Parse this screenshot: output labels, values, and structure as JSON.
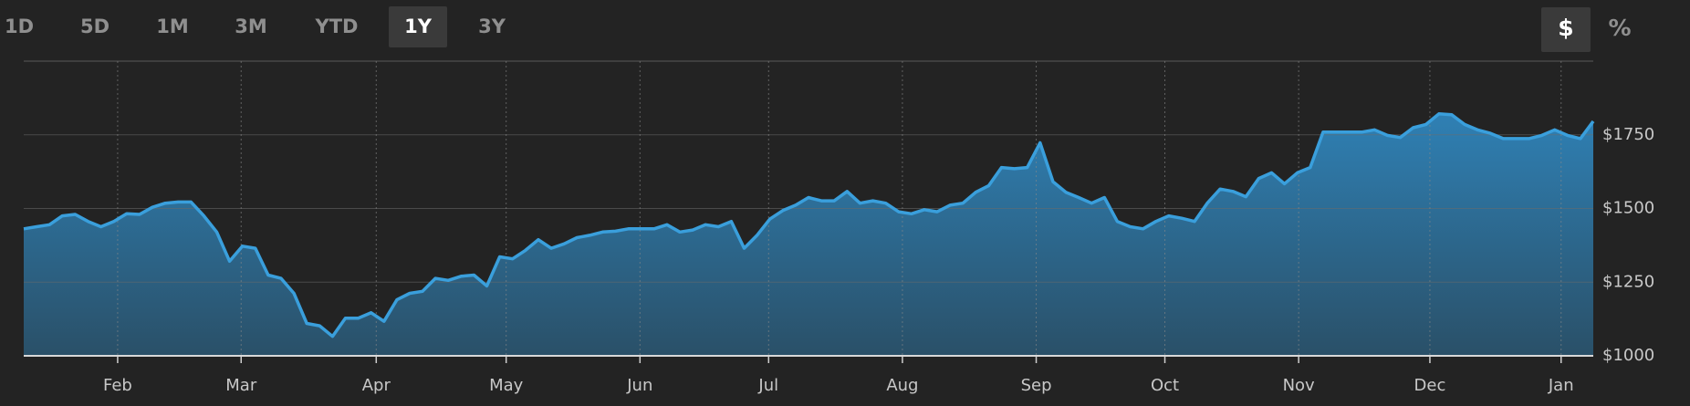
{
  "controls": {
    "ranges": [
      {
        "label": "1D",
        "active": false
      },
      {
        "label": "5D",
        "active": false
      },
      {
        "label": "1M",
        "active": false
      },
      {
        "label": "3M",
        "active": false
      },
      {
        "label": "YTD",
        "active": false
      },
      {
        "label": "1Y",
        "active": true
      },
      {
        "label": "3Y",
        "active": false
      }
    ],
    "units": [
      {
        "label": "$",
        "active": true
      },
      {
        "label": "%",
        "active": false
      }
    ]
  },
  "chart_data": {
    "type": "area",
    "color": "#3a9fdc",
    "values": [
      1431,
      1438,
      1445,
      1475,
      1480,
      1456,
      1438,
      1456,
      1482,
      1480,
      1504,
      1518,
      1522,
      1522,
      1475,
      1420,
      1321,
      1372,
      1365,
      1274,
      1263,
      1212,
      1110,
      1102,
      1066,
      1128,
      1128,
      1146,
      1117,
      1190,
      1212,
      1219,
      1263,
      1256,
      1270,
      1274,
      1237,
      1336,
      1329,
      1358,
      1394,
      1365,
      1380,
      1401,
      1409,
      1420,
      1423,
      1431,
      1431,
      1431,
      1445,
      1420,
      1427,
      1445,
      1438,
      1456,
      1365,
      1409,
      1464,
      1493,
      1511,
      1537,
      1526,
      1526,
      1558,
      1518,
      1526,
      1518,
      1489,
      1482,
      1496,
      1489,
      1511,
      1518,
      1555,
      1577,
      1639,
      1635,
      1639,
      1723,
      1591,
      1555,
      1537,
      1518,
      1537,
      1456,
      1438,
      1431,
      1456,
      1475,
      1467,
      1456,
      1518,
      1566,
      1558,
      1540,
      1602,
      1621,
      1584,
      1621,
      1639,
      1759,
      1759,
      1759,
      1759,
      1767,
      1748,
      1741,
      1774,
      1785,
      1821,
      1818,
      1785,
      1767,
      1755,
      1737,
      1737,
      1737,
      1748,
      1767,
      1748,
      1737,
      1796
    ],
    "xlim": [
      0,
      122
    ],
    "xticks": [
      {
        "value": 7.3,
        "label": "Feb"
      },
      {
        "value": 16.9,
        "label": "Mar"
      },
      {
        "value": 27.4,
        "label": "Apr"
      },
      {
        "value": 37.5,
        "label": "May"
      },
      {
        "value": 47.9,
        "label": "Jun"
      },
      {
        "value": 57.9,
        "label": "Jul"
      },
      {
        "value": 68.3,
        "label": "Aug"
      },
      {
        "value": 78.7,
        "label": "Sep"
      },
      {
        "value": 88.7,
        "label": "Oct"
      },
      {
        "value": 99.1,
        "label": "Nov"
      },
      {
        "value": 109.3,
        "label": "Dec"
      },
      {
        "value": 119.5,
        "label": "Jan"
      }
    ],
    "ylim": [
      1000,
      2000
    ],
    "yticks": [
      {
        "value": 1000,
        "label": "$1000"
      },
      {
        "value": 1250,
        "label": "$1250"
      },
      {
        "value": 1500,
        "label": "$1500"
      },
      {
        "value": 1750,
        "label": "$1750"
      }
    ],
    "grid": true
  }
}
